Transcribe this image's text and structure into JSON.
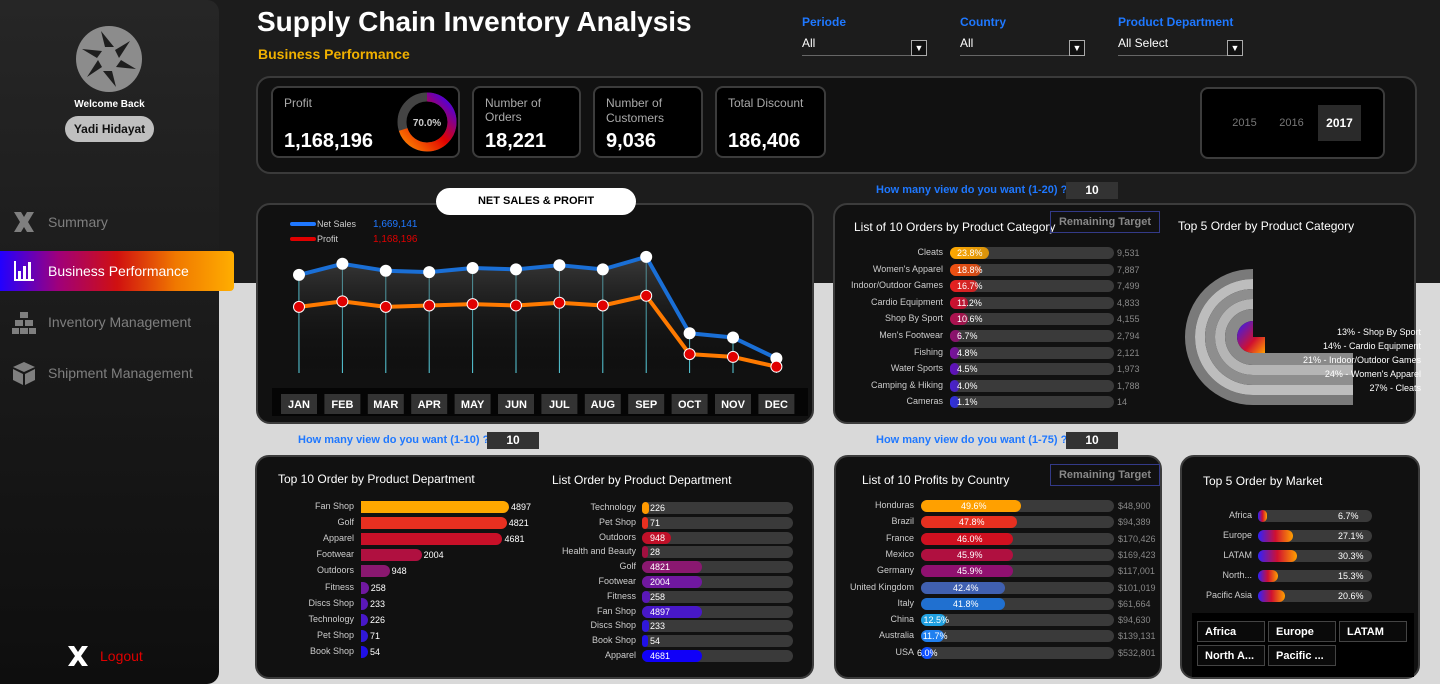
{
  "sidebar": {
    "welcome": "Welcome Back",
    "user": "Yadi Hidayat",
    "nav": [
      "Summary",
      "Business Performance",
      "Inventory Management",
      "Shipment Management"
    ],
    "logout": "Logout"
  },
  "header": {
    "title": "Supply Chain Inventory Analysis",
    "subtitle": "Business Performance"
  },
  "filters": [
    {
      "label": "Periode",
      "value": "All"
    },
    {
      "label": "Country",
      "value": "All"
    },
    {
      "label": "Product Department",
      "value": "All Select"
    }
  ],
  "kpis": [
    {
      "label": "Profit",
      "value": "1,168,196",
      "gauge": "70.0%"
    },
    {
      "label": "Number of Orders",
      "value": "18,221"
    },
    {
      "label": "Number of Customers",
      "value": "9,036"
    },
    {
      "label": "Total Discount",
      "value": "186,406"
    }
  ],
  "years": [
    "2015",
    "2016",
    "2017"
  ],
  "questions": {
    "q1": "How many  view do you want (1-20) ?",
    "q1_val": "10",
    "q2": "How many  view do you want (1-10) ?",
    "q2_val": "10",
    "q3": "How many  view do you want (1-75) ?",
    "q3_val": "10"
  },
  "netsales": {
    "title": "NET SALES & PROFIT",
    "legend": [
      {
        "name": "Net Sales",
        "value": "1,669,141",
        "color": "#1f78ff"
      },
      {
        "name": "Profit",
        "value": "1,168,196",
        "color": "#e00000"
      }
    ],
    "months": [
      "JAN",
      "FEB",
      "MAR",
      "APR",
      "MAY",
      "JUN",
      "JUL",
      "AUG",
      "SEP",
      "OCT",
      "NOV",
      "DEC"
    ],
    "sales": [
      32,
      40,
      35,
      34,
      37,
      36,
      39,
      36,
      45,
      -10,
      -13,
      -28
    ],
    "profit": [
      9,
      13,
      9,
      10,
      11,
      10,
      12,
      10,
      17,
      -25,
      -27,
      -34
    ]
  },
  "cat10": {
    "title": "List of 10 Orders by Product Category",
    "remaining": "Remaining Target",
    "rows": [
      {
        "name": "Cleats",
        "pct": "23.8%",
        "value": "9,531",
        "f": 0.24
      },
      {
        "name": "Women's Apparel",
        "pct": "18.8%",
        "value": "7,887",
        "f": 0.19
      },
      {
        "name": "Indoor/Outdoor Games",
        "pct": "16.7%",
        "value": "7,499",
        "f": 0.17
      },
      {
        "name": "Cardio Equipment",
        "pct": "11.2%",
        "value": "4,833",
        "f": 0.11
      },
      {
        "name": "Shop By Sport",
        "pct": "10.6%",
        "value": "4,155",
        "f": 0.11
      },
      {
        "name": "Men's Footwear",
        "pct": "6.7%",
        "value": "2,794",
        "f": 0.07
      },
      {
        "name": "Fishing",
        "pct": "4.8%",
        "value": "2,121",
        "f": 0.05
      },
      {
        "name": "Water Sports",
        "pct": "4.5%",
        "value": "1,973",
        "f": 0.05
      },
      {
        "name": "Camping & Hiking",
        "pct": "4.0%",
        "value": "1,788",
        "f": 0.04
      },
      {
        "name": "Cameras",
        "pct": "1.1%",
        "value": "14",
        "f": 0.01
      }
    ]
  },
  "top5cat": {
    "title": "Top 5 Order by Product Category",
    "items": [
      "13% - Shop By Sport",
      "14% - Cardio Equipment",
      "21% - Indoor/Outdoor Games",
      "24% - Women's Apparel",
      "27% - Cleats"
    ],
    "values": [
      13,
      14,
      21,
      24,
      27
    ]
  },
  "dept10": {
    "title": "Top 10 Order by Product Department",
    "rows": [
      {
        "name": "Fan Shop",
        "value": "4897",
        "v": 4897
      },
      {
        "name": "Golf",
        "value": "4821",
        "v": 4821
      },
      {
        "name": "Apparel",
        "value": "4681",
        "v": 4681
      },
      {
        "name": "Footwear",
        "value": "2004",
        "v": 2004
      },
      {
        "name": "Outdoors",
        "value": "948",
        "v": 948
      },
      {
        "name": "Fitness",
        "value": "258",
        "v": 258
      },
      {
        "name": "Discs Shop",
        "value": "233",
        "v": 233
      },
      {
        "name": "Technology",
        "value": "226",
        "v": 226
      },
      {
        "name": "Pet Shop",
        "value": "71",
        "v": 71
      },
      {
        "name": "Book Shop",
        "value": "54",
        "v": 54
      }
    ]
  },
  "deptList": {
    "title": "List Order by Product Department",
    "rows": [
      {
        "name": "Technology",
        "value": "226",
        "v": 226
      },
      {
        "name": "Pet Shop",
        "value": "71",
        "v": 71
      },
      {
        "name": "Outdoors",
        "value": "948",
        "v": 948
      },
      {
        "name": "Health and Beauty",
        "value": "28",
        "v": 28
      },
      {
        "name": "Golf",
        "value": "4821",
        "v": 4821
      },
      {
        "name": "Footwear",
        "value": "2004",
        "v": 2004
      },
      {
        "name": "Fitness",
        "value": "258",
        "v": 258
      },
      {
        "name": "Fan Shop",
        "value": "4897",
        "v": 4897
      },
      {
        "name": "Discs Shop",
        "value": "233",
        "v": 233
      },
      {
        "name": "Book Shop",
        "value": "54",
        "v": 54
      },
      {
        "name": "Apparel",
        "value": "4681",
        "v": 4681
      }
    ]
  },
  "country10": {
    "title": "List of 10 Profits by Country",
    "remaining": "Remaining Target",
    "rows": [
      {
        "name": "Honduras",
        "pct": "49.6%",
        "value": "$48,900",
        "f": 0.5
      },
      {
        "name": "Brazil",
        "pct": "47.8%",
        "value": "$94,389",
        "f": 0.48
      },
      {
        "name": "France",
        "pct": "46.0%",
        "value": "$170,426",
        "f": 0.46
      },
      {
        "name": "Mexico",
        "pct": "45.9%",
        "value": "$169,423",
        "f": 0.46
      },
      {
        "name": "Germany",
        "pct": "45.9%",
        "value": "$117,001",
        "f": 0.46
      },
      {
        "name": "United Kingdom",
        "pct": "42.4%",
        "value": "$101,019",
        "f": 0.42
      },
      {
        "name": "Italy",
        "pct": "41.8%",
        "value": "$61,664",
        "f": 0.42
      },
      {
        "name": "China",
        "pct": "12.5%",
        "value": "$94,630",
        "f": 0.125
      },
      {
        "name": "Australia",
        "pct": "11.7%",
        "value": "$139,131",
        "f": 0.117
      },
      {
        "name": "USA",
        "pct": "6.0%",
        "value": "$532,801",
        "f": 0.06
      }
    ]
  },
  "market": {
    "title": "Top 5 Order by Market",
    "rows": [
      {
        "name": "Africa",
        "pct": "6.7%",
        "f": 0.067
      },
      {
        "name": "Europe",
        "pct": "27.1%",
        "f": 0.271
      },
      {
        "name": "LATAM",
        "pct": "30.3%",
        "f": 0.303
      },
      {
        "name": "North...",
        "pct": "15.3%",
        "f": 0.153
      },
      {
        "name": "Pacific Asia",
        "pct": "20.6%",
        "f": 0.206
      }
    ],
    "buttons": [
      "Africa",
      "Europe",
      "LATAM",
      "North A...",
      "Pacific ..."
    ]
  }
}
